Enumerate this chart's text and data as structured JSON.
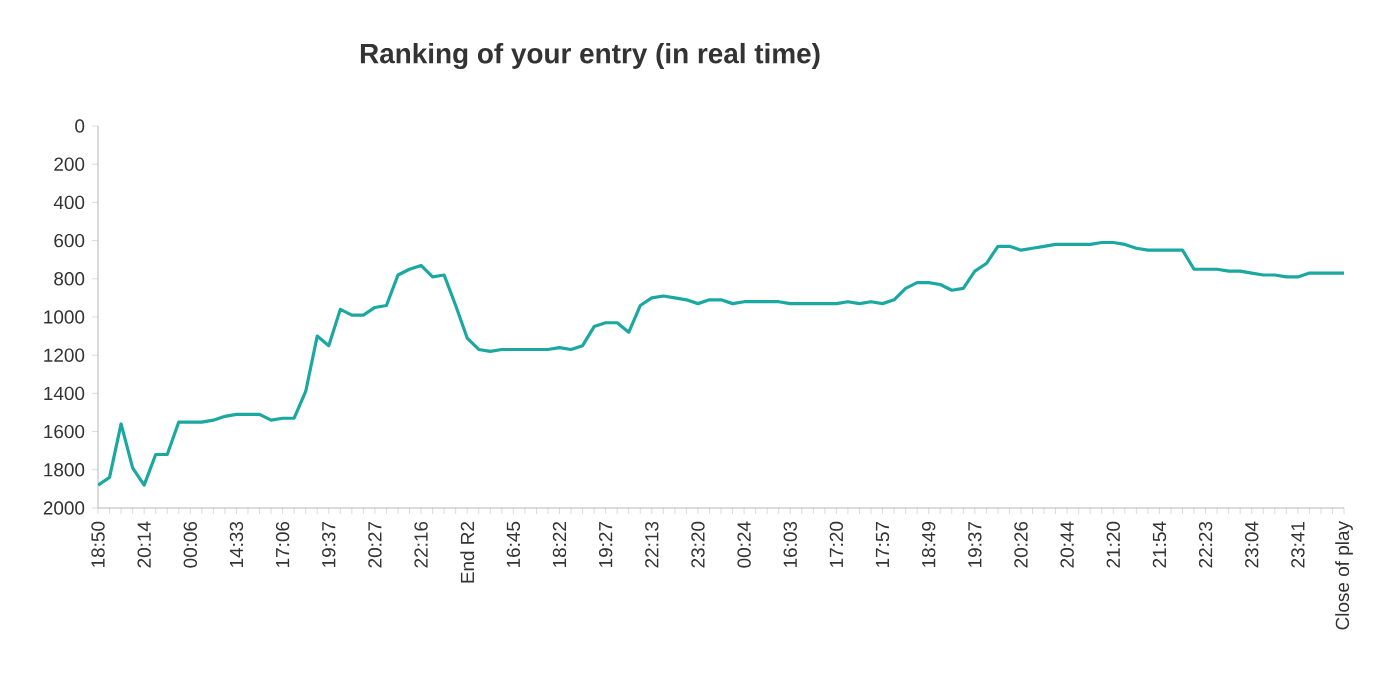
{
  "chart_data": {
    "type": "line",
    "title": "Ranking of your entry (in real time)",
    "categories": [
      "18:50",
      null,
      null,
      null,
      "20:14",
      null,
      null,
      null,
      "00:06",
      null,
      null,
      null,
      "14:33",
      null,
      null,
      null,
      "17:06",
      null,
      null,
      null,
      "19:37",
      null,
      null,
      null,
      "20:27",
      null,
      null,
      null,
      "22:16",
      null,
      null,
      null,
      "End R2",
      null,
      null,
      null,
      "16:45",
      null,
      null,
      null,
      "18:22",
      null,
      null,
      null,
      "19:27",
      null,
      null,
      null,
      "22:13",
      null,
      null,
      null,
      "23:20",
      null,
      null,
      null,
      "00:24",
      null,
      null,
      null,
      "16:03",
      null,
      null,
      null,
      "17:20",
      null,
      null,
      null,
      "17:57",
      null,
      null,
      null,
      "18:49",
      null,
      null,
      null,
      "19:37",
      null,
      null,
      null,
      "20:26",
      null,
      null,
      null,
      "20:44",
      null,
      null,
      null,
      "21:20",
      null,
      null,
      null,
      "21:54",
      null,
      null,
      null,
      "22:23",
      null,
      null,
      null,
      "23:04",
      null,
      null,
      null,
      "23:41",
      null,
      null,
      null,
      "Close of play"
    ],
    "series": [
      {
        "color": "#1aa8a0",
        "values": [
          1880,
          1840,
          1560,
          1790,
          1880,
          1720,
          1720,
          1550,
          1550,
          1550,
          1540,
          1520,
          1510,
          1510,
          1510,
          1540,
          1530,
          1530,
          1390,
          1100,
          1150,
          960,
          990,
          990,
          950,
          940,
          780,
          750,
          730,
          790,
          780,
          940,
          1110,
          1170,
          1180,
          1170,
          1170,
          1170,
          1170,
          1170,
          1160,
          1170,
          1150,
          1050,
          1030,
          1030,
          1080,
          940,
          900,
          890,
          900,
          910,
          930,
          910,
          910,
          930,
          920,
          920,
          920,
          920,
          930,
          930,
          930,
          930,
          930,
          920,
          930,
          920,
          930,
          910,
          850,
          820,
          820,
          830,
          860,
          850,
          760,
          720,
          630,
          630,
          650,
          640,
          630,
          620,
          620,
          620,
          620,
          610,
          610,
          620,
          640,
          650,
          650,
          650,
          650,
          750,
          750,
          750,
          760,
          760,
          770,
          780,
          780,
          790,
          790,
          770,
          770,
          770,
          770
        ]
      }
    ],
    "ylim": [
      2000,
      0
    ],
    "yticks": [
      0,
      200,
      400,
      600,
      800,
      1000,
      1200,
      1400,
      1600,
      1800,
      2000
    ],
    "grid": false,
    "marker": "none",
    "line_style": "solid"
  }
}
